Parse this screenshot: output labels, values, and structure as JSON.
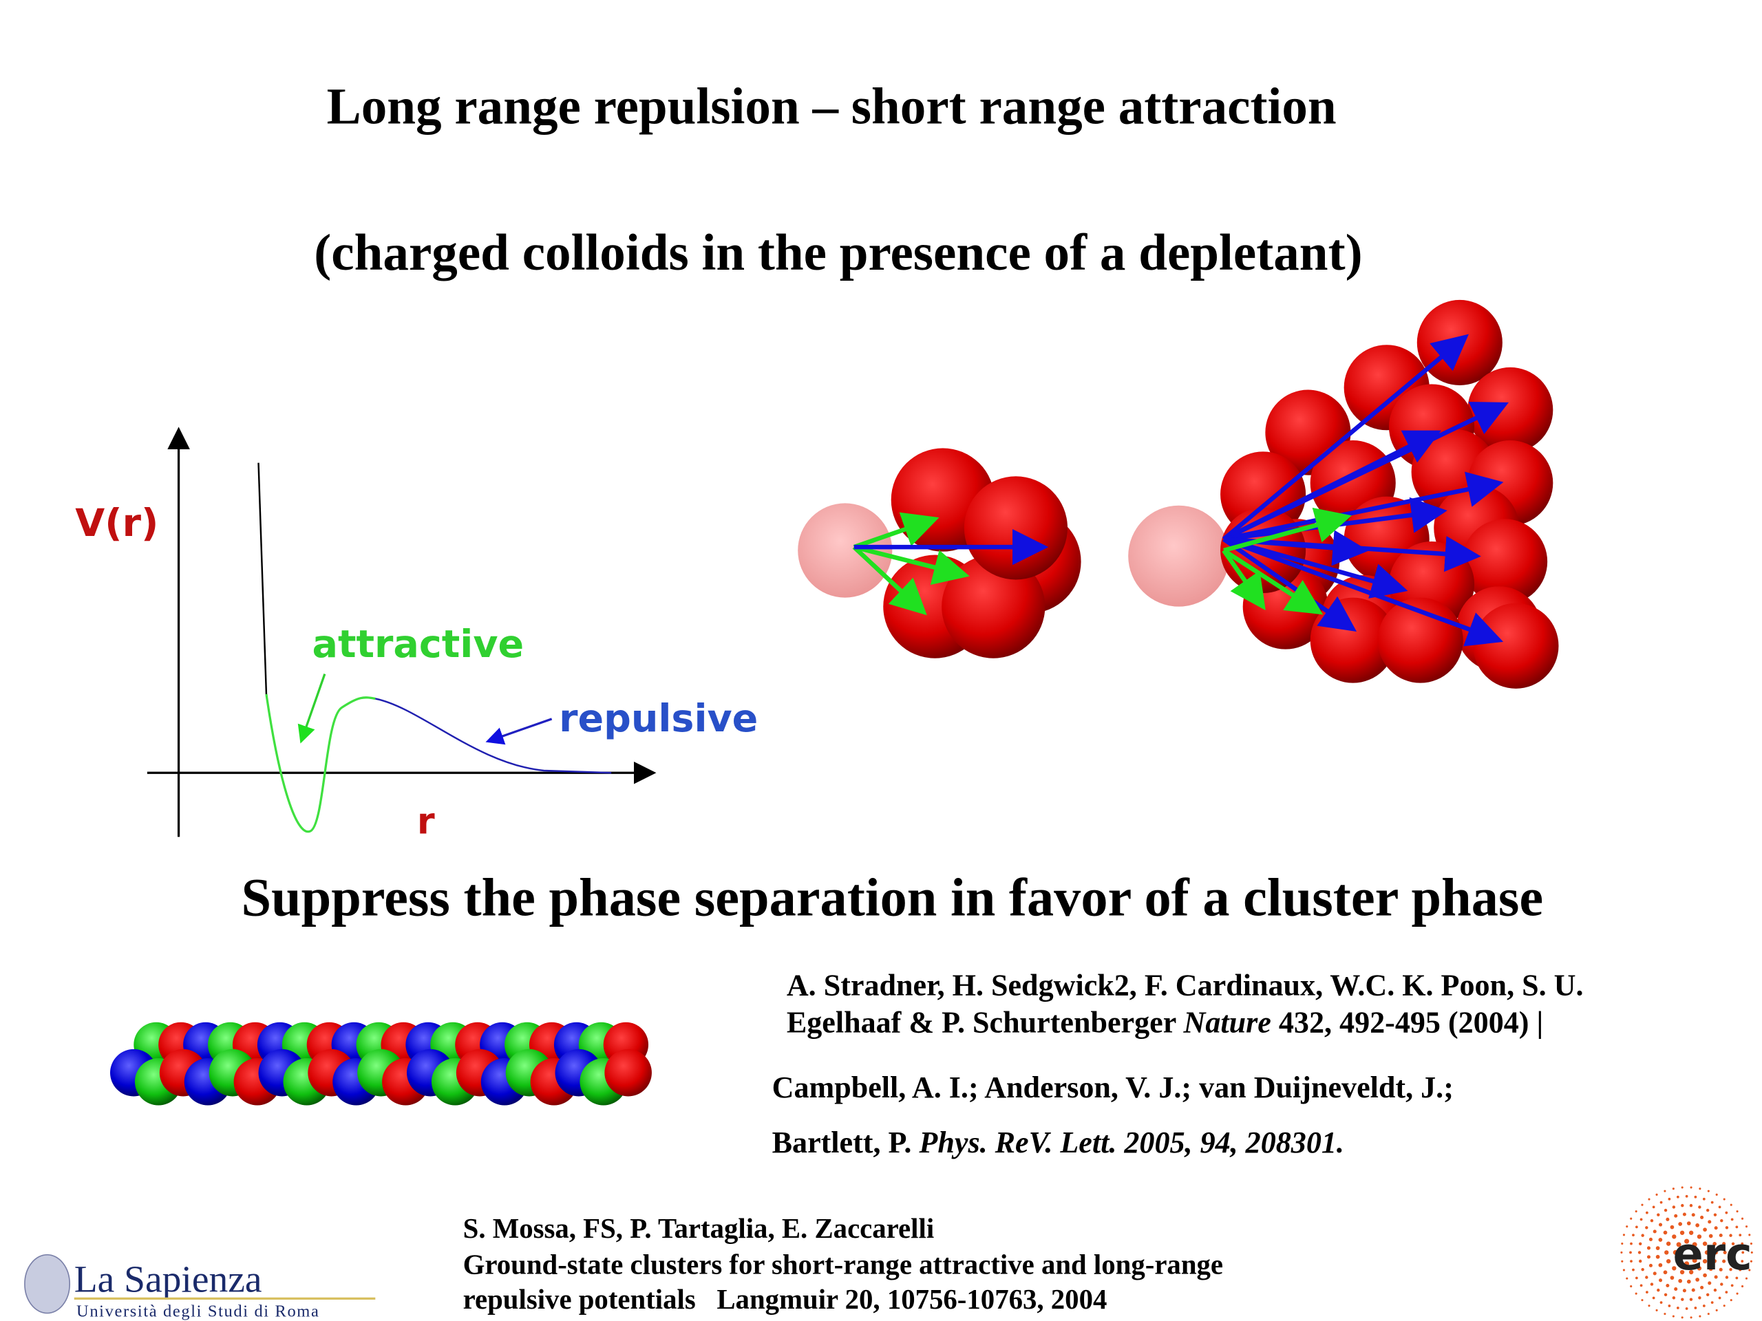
{
  "slide": {
    "title": "Long range repulsion – short range attraction",
    "subtitle": "(charged colloids in the presence of a depletant)",
    "diagram": {
      "y_label": "V(r)",
      "x_label": "r",
      "attractive": "attractive",
      "repulsive": "repulsive"
    },
    "headline": "Suppress the phase separation in favor of a cluster phase",
    "references": [
      {
        "line1": "A. Stradner, H. Sedgwick2, F.  Cardinaux, W.C. K. Poon, S. U.",
        "line2_before": "Egelhaaf & P. Schurtenberger ",
        "line2_italic": "Nature",
        "line2_after": " 432, 492-495 (2004) |"
      },
      {
        "line1": "Campbell, A. I.; Anderson, V. J.; van Duijneveldt, J.;",
        "line2_before": "Bartlett, P. ",
        "line2_italic": "Phys. ReV. Lett. 2005, 94, 208301."
      },
      {
        "line1": "S. Mossa, FS, P. Tartaglia, E. Zaccarelli",
        "line2": "Ground-state clusters for short-range attractive and long-range",
        "line3": "repulsive potentials   Langmuir 20, 10756-10763, 2004"
      }
    ],
    "logos": {
      "university": "La Sapienza",
      "university_sub": "Università degli Studi di Roma",
      "erc": "erc"
    }
  }
}
